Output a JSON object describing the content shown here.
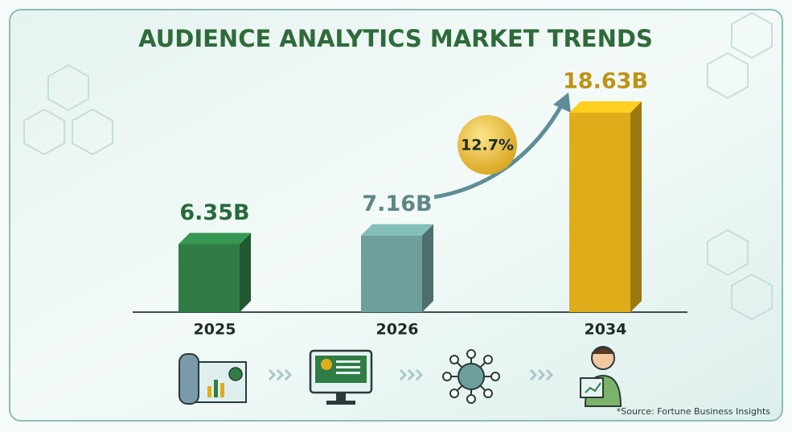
{
  "chart_data": {
    "type": "bar",
    "title": "AUDIENCE ANALYTICS MARKET TRENDS",
    "categories": [
      "2025",
      "2026",
      "2034"
    ],
    "values": [
      6.35,
      7.16,
      18.63
    ],
    "value_labels": [
      "6.35B",
      "7.16B",
      "18.63B"
    ],
    "colors": [
      "#2f7d45",
      "#6f9f9c",
      "#e0ad1a"
    ],
    "annotation": "12.7%",
    "source": "*Source: Fortune Business Insights"
  }
}
